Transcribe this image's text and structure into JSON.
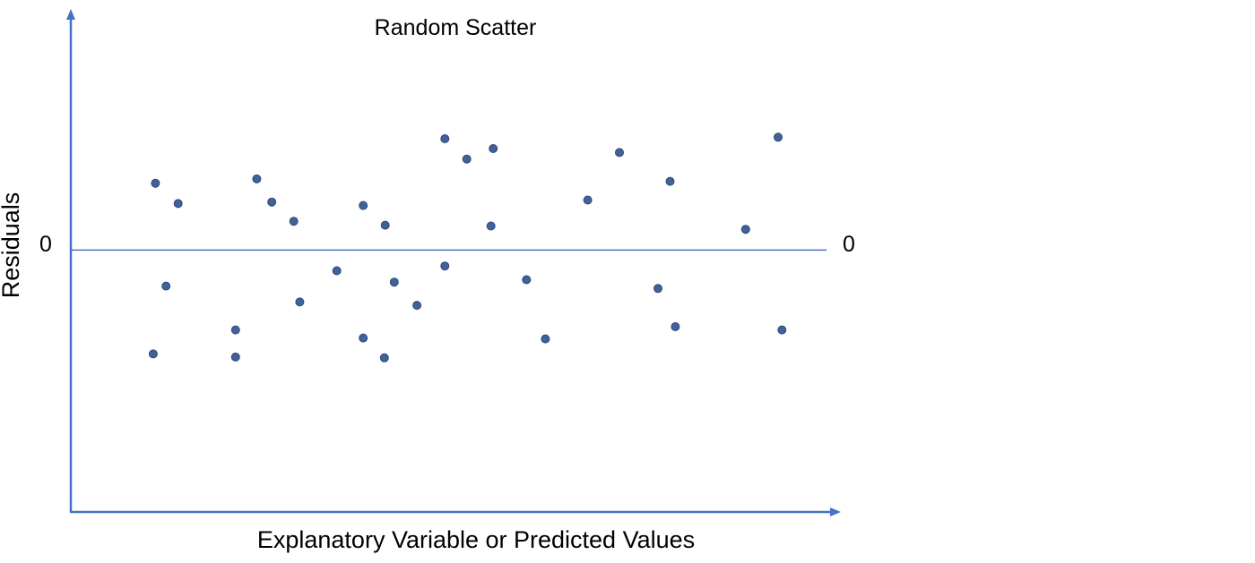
{
  "chart_data": {
    "type": "scatter",
    "title": "Random Scatter",
    "xlabel": "Explanatory Variable or Predicted Values",
    "ylabel": "Residuals",
    "zero_label_left": "0",
    "zero_label_right": "0",
    "xlim": [
      0,
      100
    ],
    "ylim": [
      -12,
      10.8
    ],
    "grid": false,
    "legend": "none",
    "colors": {
      "axis": "#4472C4",
      "zero_line": "#4472C4",
      "point": "#41619A",
      "point_edge": "#2F4A7A"
    },
    "points": [
      {
        "x": 11.2,
        "y": 3.06
      },
      {
        "x": 14.2,
        "y": 2.13
      },
      {
        "x": 12.6,
        "y": -1.65
      },
      {
        "x": 10.9,
        "y": -4.76
      },
      {
        "x": 21.8,
        "y": -3.66
      },
      {
        "x": 21.8,
        "y": -4.9
      },
      {
        "x": 24.6,
        "y": 3.26
      },
      {
        "x": 26.6,
        "y": 2.2
      },
      {
        "x": 29.5,
        "y": 1.32
      },
      {
        "x": 30.3,
        "y": -2.38
      },
      {
        "x": 35.2,
        "y": -0.95
      },
      {
        "x": 38.7,
        "y": 2.04
      },
      {
        "x": 38.7,
        "y": -4.03
      },
      {
        "x": 41.6,
        "y": 1.14
      },
      {
        "x": 41.5,
        "y": -4.94
      },
      {
        "x": 42.8,
        "y": -1.47
      },
      {
        "x": 45.8,
        "y": -2.53
      },
      {
        "x": 49.5,
        "y": 5.1
      },
      {
        "x": 49.5,
        "y": -0.73
      },
      {
        "x": 52.4,
        "y": 4.17
      },
      {
        "x": 55.9,
        "y": 4.65
      },
      {
        "x": 55.6,
        "y": 1.1
      },
      {
        "x": 60.3,
        "y": -1.36
      },
      {
        "x": 62.8,
        "y": -4.07
      },
      {
        "x": 68.4,
        "y": 2.29
      },
      {
        "x": 72.6,
        "y": 4.47
      },
      {
        "x": 77.7,
        "y": -1.76
      },
      {
        "x": 79.3,
        "y": 3.15
      },
      {
        "x": 80.0,
        "y": -3.51
      },
      {
        "x": 89.3,
        "y": 0.95
      },
      {
        "x": 93.6,
        "y": 5.17
      },
      {
        "x": 94.1,
        "y": -3.66
      }
    ]
  }
}
